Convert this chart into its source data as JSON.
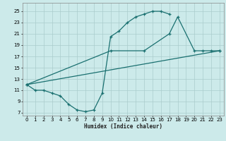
{
  "xlabel": "Humidex (Indice chaleur)",
  "bg_color": "#cceaea",
  "grid_color": "#aacccc",
  "line_color": "#1a7070",
  "xlim": [
    -0.5,
    23.5
  ],
  "ylim": [
    6.5,
    26.5
  ],
  "xticks": [
    0,
    1,
    2,
    3,
    4,
    5,
    6,
    7,
    8,
    9,
    10,
    11,
    12,
    13,
    14,
    15,
    16,
    17,
    18,
    19,
    20,
    21,
    22,
    23
  ],
  "yticks": [
    7,
    9,
    11,
    13,
    15,
    17,
    19,
    21,
    23,
    25
  ],
  "line1_x": [
    0,
    1,
    2,
    3,
    4,
    5,
    6,
    7,
    8,
    9,
    10,
    11,
    12,
    13,
    14,
    15,
    16,
    17
  ],
  "line1_y": [
    12,
    11,
    11,
    10.5,
    10,
    8.5,
    7.5,
    7.2,
    7.5,
    10.5,
    20.5,
    21.5,
    23,
    24,
    24.5,
    25,
    25,
    24.5
  ],
  "line2_x": [
    0,
    10,
    14,
    17,
    18,
    20,
    21,
    22,
    23
  ],
  "line2_y": [
    12,
    18,
    18,
    21,
    24,
    18,
    18,
    18,
    18
  ],
  "line3_x": [
    0,
    23
  ],
  "line3_y": [
    12,
    18
  ],
  "line1_markers_x": [
    0,
    1,
    2,
    3,
    4,
    5,
    6,
    7,
    8,
    9,
    10,
    11,
    12,
    13,
    14,
    15,
    16,
    17
  ],
  "line2_markers_x": [
    0,
    10,
    14,
    17,
    18,
    20,
    21,
    22,
    23
  ],
  "marker": "+"
}
